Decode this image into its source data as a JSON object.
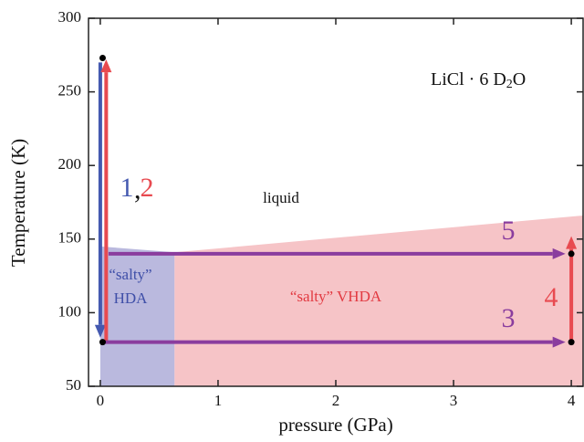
{
  "chart_data": {
    "type": "phase-diagram",
    "x_label": "pressure (GPa)",
    "y_label": "Temperature (K)",
    "xlim": [
      -0.1,
      4.1
    ],
    "ylim": [
      50,
      300
    ],
    "xticks": [
      0,
      1,
      2,
      3,
      4
    ],
    "yticks": [
      50,
      100,
      150,
      200,
      250,
      300
    ],
    "compound": {
      "text": "LiCl · 6 D",
      "subscript": "2",
      "suffix": "O"
    },
    "regions": [
      {
        "name": "“salty” VHDA",
        "color": "#f6c4c7",
        "x": [
          0.63,
          4.1,
          4.1,
          0.63
        ],
        "y": [
          50,
          50,
          166,
          141
        ]
      },
      {
        "name": "“salty” HDA",
        "color": "#bab9de",
        "x": [
          0,
          0.63,
          0.63,
          0
        ],
        "y": [
          50,
          50,
          141,
          145
        ]
      }
    ],
    "liquid_label": "liquid",
    "arrows": [
      {
        "label": "1",
        "color": "#4459b0",
        "x": [
          0,
          0
        ],
        "y": [
          270,
          83
        ]
      },
      {
        "label": "2",
        "color": "#e84a50",
        "x": [
          0.05,
          0.05
        ],
        "y": [
          80,
          272
        ]
      },
      {
        "label": "3",
        "color": "#8a3d9e",
        "x": [
          0.02,
          3.95
        ],
        "y": [
          80,
          80
        ]
      },
      {
        "label": "4",
        "color": "#e84a50",
        "x": [
          4,
          4
        ],
        "y": [
          80,
          152
        ]
      },
      {
        "label": "5",
        "color": "#8a3d9e",
        "x": [
          0.07,
          3.95
        ],
        "y": [
          140,
          140
        ]
      }
    ],
    "label_separator": ",",
    "points": {
      "x": [
        0.02,
        0.02,
        4,
        4
      ],
      "y": [
        273,
        80,
        80,
        140
      ]
    }
  }
}
